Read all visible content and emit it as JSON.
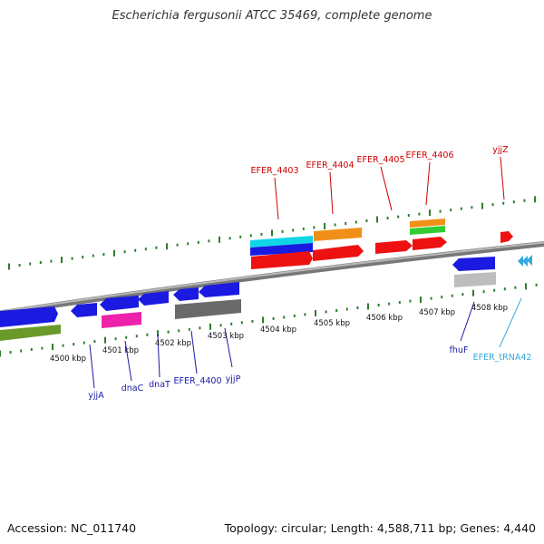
{
  "title": "Escherichia fergusonii ATCC 35469, complete genome",
  "accession_label": "Accession: NC_011740",
  "summary_label": "Topology: circular; Length: 4,588,711 bp; Genes: 4,440",
  "colors": {
    "backbone": "#8a8a8a",
    "tick": "#2e7d2e",
    "top_label": "#cc0000",
    "bottom_label": "#1a1aaa",
    "trna_label": "#33aadd",
    "cds_red": "#ee1111",
    "cds_blue": "#1a1ae0",
    "orange": "#f09018",
    "cyan": "#11d4e8",
    "green": "#33cc33",
    "magenta": "#ee22aa",
    "olive": "#6a9a2a",
    "gray_dark": "#6a6a6a",
    "gray_light": "#bdbdbd"
  },
  "kbp_labels": [
    "4500 kbp",
    "4501 kbp",
    "4502 kbp",
    "4503 kbp",
    "4504 kbp",
    "4505 kbp",
    "4506 kbp",
    "4507 kbp",
    "4508 kbp"
  ],
  "top_genes": [
    "EFER_4403",
    "EFER_4404",
    "EFER_4405",
    "EFER_4406",
    "yjjZ"
  ],
  "bottom_genes": [
    "yjjA",
    "dnaC",
    "dnaT",
    "EFER_4400",
    "yjjP",
    "fhuF",
    "EFER_tRNA42"
  ]
}
